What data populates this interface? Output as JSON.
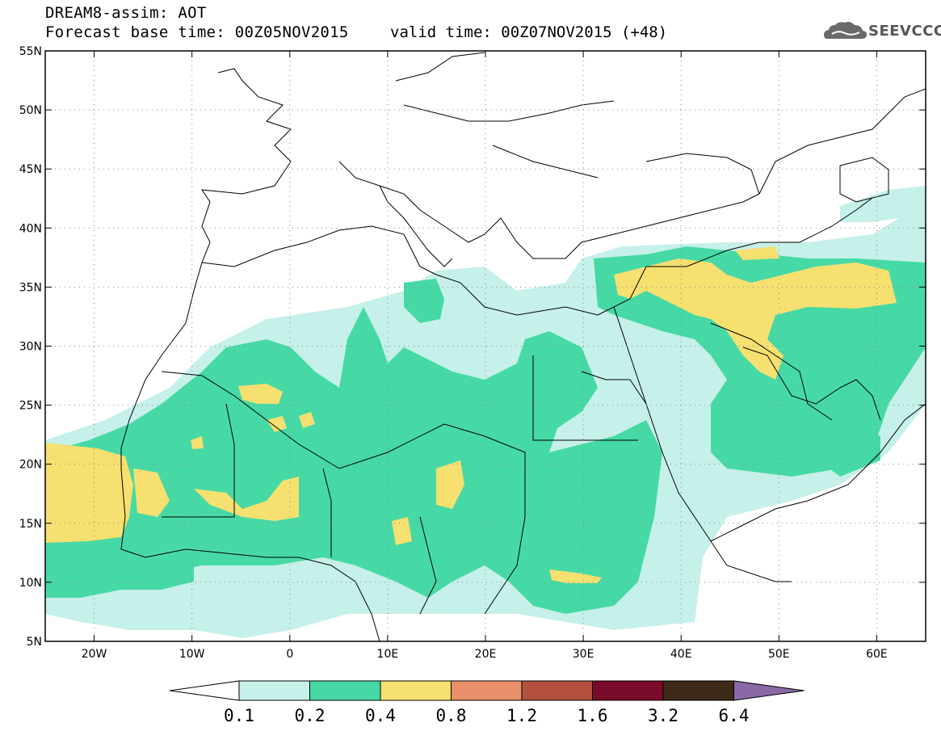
{
  "title": {
    "line1": "DREAM8-assim: AOT",
    "base_time": "Forecast base time: 00Z05NOV2015",
    "valid_time": "valid time: 00Z07NOV2015 (+48)"
  },
  "logo": {
    "text": "SEEVCCC"
  },
  "map": {
    "lat_labels": [
      "55N",
      "50N",
      "45N",
      "40N",
      "35N",
      "30N",
      "25N",
      "20N",
      "15N",
      "10N",
      "5N"
    ],
    "lon_labels": [
      "20W",
      "10W",
      "0",
      "10E",
      "20E",
      "30E",
      "40E",
      "50E",
      "60E"
    ],
    "lat_range": [
      5,
      55
    ],
    "lon_range": [
      -25,
      65
    ]
  },
  "colorbar": {
    "levels": [
      "0.1",
      "0.2",
      "0.4",
      "0.8",
      "1.2",
      "1.6",
      "3.2",
      "6.4"
    ],
    "colors": [
      "#c6f0ea",
      "#46d9a5",
      "#f5e070",
      "#e8906a",
      "#b3503e",
      "#7a0a2a",
      "#3d2a18",
      "#8a6aa6"
    ]
  }
}
